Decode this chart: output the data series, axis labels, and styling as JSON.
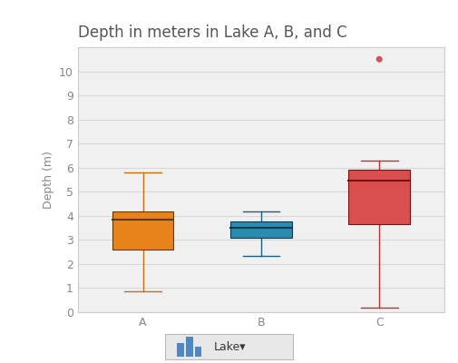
{
  "title": "Depth in meters in Lake A, B, and C",
  "ylabel": "Depth (m)",
  "xlabel_labels": [
    "A",
    "B",
    "C"
  ],
  "ylim": [
    0,
    11
  ],
  "yticks": [
    0,
    1,
    2,
    3,
    4,
    5,
    6,
    7,
    8,
    9,
    10
  ],
  "background_color": "#ffffff",
  "plot_bg_color": "#f0f0f0",
  "legend_label": "Lake",
  "boxes": [
    {
      "label": "A",
      "q1": 2.6,
      "median": 3.85,
      "q3": 4.2,
      "whisker_low": 0.85,
      "whisker_high": 5.8,
      "outliers": [],
      "color": "#E8821A",
      "whisker_color": "#C97010",
      "box_edge_color": "#5a3a00"
    },
    {
      "label": "B",
      "q1": 3.1,
      "median": 3.5,
      "q3": 3.75,
      "whisker_low": 2.35,
      "whisker_high": 4.2,
      "outliers": [],
      "color": "#2B8BAE",
      "whisker_color": "#1A6080",
      "box_edge_color": "#0a3a50"
    },
    {
      "label": "C",
      "q1": 3.65,
      "median": 5.45,
      "q3": 5.9,
      "whisker_low": 0.2,
      "whisker_high": 6.3,
      "outliers": [
        10.5
      ],
      "color": "#D94F4F",
      "whisker_color": "#C03030",
      "box_edge_color": "#7a1010"
    }
  ],
  "title_fontsize": 12,
  "axis_label_fontsize": 9,
  "tick_fontsize": 9,
  "title_color": "#555555",
  "tick_color": "#888888",
  "grid_color": "#d8d8d8",
  "border_color": "#cccccc"
}
